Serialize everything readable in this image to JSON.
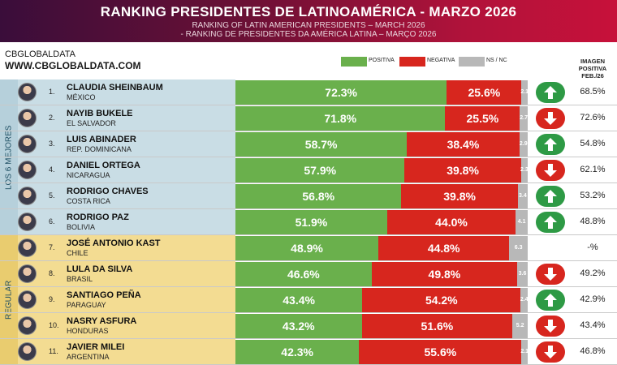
{
  "header": {
    "title": "RANKING PRESIDENTES DE LATINOAMÉRICA - MARZO 2026",
    "subtitle_en": "RANKING OF LATIN AMERICAN PRESIDENTS – MARCH 2026",
    "subtitle_pt": "- RANKING DE PRESIDENTES DA AMÉRICA LATINA – MARÇO 2026"
  },
  "brand": {
    "name": "CBGLOBALDATA",
    "url": "WWW.CBGLOBALDATA.COM"
  },
  "legend": [
    {
      "label": "POSITIVA",
      "color": "#6ab04c"
    },
    {
      "label": "NEGATIVA",
      "color": "#d7261e"
    },
    {
      "label": "NS / NC",
      "color": "#b8b8b8"
    }
  ],
  "column_header": {
    "line1": "IMAGEN",
    "line2": "POSITIVA",
    "line3": "FEB./26"
  },
  "groups": [
    {
      "label": "LOS 6 MEJORES",
      "color": "#c9dde5"
    },
    {
      "label": "REGULAR",
      "color": "#f3dc92"
    }
  ],
  "colors": {
    "up": "#2e9a45",
    "down": "#d7261e"
  },
  "chart_data": {
    "type": "bar",
    "stacked": true,
    "orientation": "horizontal",
    "title": "RANKING PRESIDENTES DE LATINOAMÉRICA - MARZO 2026",
    "xlim": [
      0,
      100
    ],
    "series_names": [
      "POSITIVA",
      "NEGATIVA",
      "NS / NC"
    ],
    "rows": [
      {
        "rank": "1.",
        "name": "CLAUDIA SHEINBAUM",
        "country": "MÉXICO",
        "positive": 72.3,
        "positive_label": "72.3%",
        "negative": 25.6,
        "negative_label": "25.6%",
        "nsnc": 2.1,
        "nsnc_label": "2.1",
        "trend": "up",
        "prev_label": "68.5%",
        "group": 0
      },
      {
        "rank": "2.",
        "name": "NAYIB BUKELE",
        "country": "EL SALVADOR",
        "positive": 71.8,
        "positive_label": "71.8%",
        "negative": 25.5,
        "negative_label": "25.5%",
        "nsnc": 2.7,
        "nsnc_label": "2.7",
        "trend": "down",
        "prev_label": "72.6%",
        "group": 0
      },
      {
        "rank": "3.",
        "name": "LUIS ABINADER",
        "country": "REP. DOMINICANA",
        "positive": 58.7,
        "positive_label": "58.7%",
        "negative": 38.4,
        "negative_label": "38.4%",
        "nsnc": 2.9,
        "nsnc_label": "2.9",
        "trend": "up",
        "prev_label": "54.8%",
        "group": 0
      },
      {
        "rank": "4.",
        "name": "DANIEL ORTEGA",
        "country": "NICARAGUA",
        "positive": 57.9,
        "positive_label": "57.9%",
        "negative": 39.8,
        "negative_label": "39.8%",
        "nsnc": 2.3,
        "nsnc_label": "2.3",
        "trend": "down",
        "prev_label": "62.1%",
        "group": 0
      },
      {
        "rank": "5.",
        "name": "RODRIGO CHAVES",
        "country": "COSTA RICA",
        "positive": 56.8,
        "positive_label": "56.8%",
        "negative": 39.8,
        "negative_label": "39.8%",
        "nsnc": 3.4,
        "nsnc_label": "3.4",
        "trend": "up",
        "prev_label": "53.2%",
        "group": 0
      },
      {
        "rank": "6.",
        "name": "RODRIGO PAZ",
        "country": "BOLIVIA",
        "positive": 51.9,
        "positive_label": "51.9%",
        "negative": 44.0,
        "negative_label": "44.0%",
        "nsnc": 4.1,
        "nsnc_label": "4.1",
        "trend": "up",
        "prev_label": "48.8%",
        "group": 0
      },
      {
        "rank": "7.",
        "name": "JOSÉ ANTONIO KAST",
        "country": "CHILE",
        "positive": 48.9,
        "positive_label": "48.9%",
        "negative": 44.8,
        "negative_label": "44.8%",
        "nsnc": 6.3,
        "nsnc_label": "6.3",
        "trend": "none",
        "prev_label": "-%",
        "group": 1
      },
      {
        "rank": "8.",
        "name": "LULA DA SILVA",
        "country": "BRASIL",
        "positive": 46.6,
        "positive_label": "46.6%",
        "negative": 49.8,
        "negative_label": "49.8%",
        "nsnc": 3.6,
        "nsnc_label": "3.6",
        "trend": "down",
        "prev_label": "49.2%",
        "group": 1
      },
      {
        "rank": "9.",
        "name": "SANTIAGO PEÑA",
        "country": "PARAGUAY",
        "positive": 43.4,
        "positive_label": "43.4%",
        "negative": 54.2,
        "negative_label": "54.2%",
        "nsnc": 2.4,
        "nsnc_label": "2.4",
        "trend": "up",
        "prev_label": "42.9%",
        "group": 1
      },
      {
        "rank": "10.",
        "name": "NASRY ASFURA",
        "country": "HONDURAS",
        "positive": 43.2,
        "positive_label": "43.2%",
        "negative": 51.6,
        "negative_label": "51.6%",
        "nsnc": 5.2,
        "nsnc_label": "5.2",
        "trend": "down",
        "prev_label": "43.4%",
        "group": 1
      },
      {
        "rank": "11.",
        "name": "JAVIER MILEI",
        "country": "ARGENTINA",
        "positive": 42.3,
        "positive_label": "42.3%",
        "negative": 55.6,
        "negative_label": "55.6%",
        "nsnc": 2.1,
        "nsnc_label": "2.1",
        "trend": "down",
        "prev_label": "46.8%",
        "group": 1
      }
    ]
  }
}
